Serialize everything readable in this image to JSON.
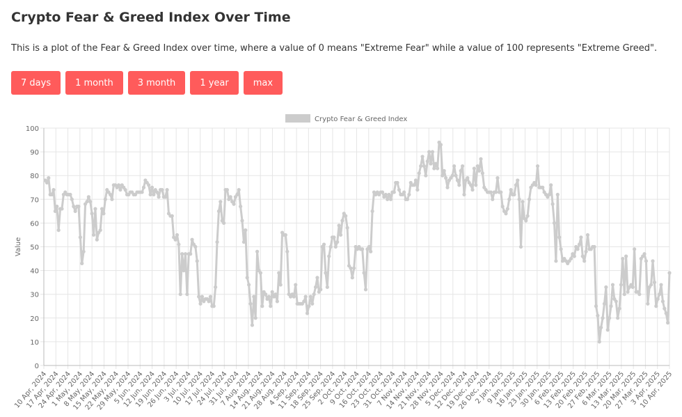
{
  "page": {
    "title": "Crypto Fear & Greed Index Over Time",
    "description": "This is a plot of the Fear & Greed Index over time, where a value of 0 means \"Extreme Fear\" while a value of 100 represents \"Extreme Greed\"."
  },
  "buttons": [
    {
      "label": "7 days"
    },
    {
      "label": "1 month"
    },
    {
      "label": "3 month"
    },
    {
      "label": "1 year"
    },
    {
      "label": "max"
    }
  ],
  "colors": {
    "accent": "#ff5b5b",
    "line": "#cccccc",
    "grid": "#e5e5e5",
    "axis_text": "#666666"
  },
  "chart_data": {
    "type": "line",
    "title": "",
    "xlabel": "",
    "ylabel": "Value",
    "ylim": [
      0,
      100
    ],
    "yticks": [
      0,
      10,
      20,
      30,
      40,
      50,
      60,
      70,
      80,
      90,
      100
    ],
    "grid": true,
    "legend_position": "top",
    "x_tick_labels": [
      "10 Apr, 2024",
      "17 Apr, 2024",
      "24 Apr, 2024",
      "1 May, 2024",
      "8 May, 2024",
      "15 May, 2024",
      "22 May, 2024",
      "29 May, 2024",
      "5 Jun, 2024",
      "12 Jun, 2024",
      "19 Jun, 2024",
      "26 Jun, 2024",
      "3 Jul, 2024",
      "10 Jul, 2024",
      "17 Jul, 2024",
      "24 Jul, 2024",
      "31 Jul, 2024",
      "7 Aug, 2024",
      "14 Aug, 2024",
      "21 Aug, 2024",
      "28 Aug, 2024",
      "4 Sep, 2024",
      "11 Sep, 2024",
      "18 Sep, 2024",
      "25 Sep, 2024",
      "2 Oct, 2024",
      "9 Oct, 2024",
      "16 Oct, 2024",
      "23 Oct, 2024",
      "31 Oct, 2024",
      "7 Nov, 2024",
      "14 Nov, 2024",
      "21 Nov, 2024",
      "28 Nov, 2024",
      "5 Dec, 2024",
      "12 Dec, 2024",
      "19 Dec, 2024",
      "26 Dec, 2024",
      "2 Jan, 2025",
      "9 Jan, 2025",
      "16 Jan, 2025",
      "23 Jan, 2025",
      "30 Jan, 2025",
      "6 Feb, 2025",
      "13 Feb, 2025",
      "20 Feb, 2025",
      "27 Feb, 2025",
      "6 Mar, 2025",
      "13 Mar, 2025",
      "20 Mar, 2025",
      "27 Mar, 2025",
      "3 Apr, 2025",
      "10 Apr, 2025"
    ],
    "series": [
      {
        "name": "Crypto Fear & Greed Index",
        "values": [
          78,
          77,
          79,
          72,
          72,
          74,
          65,
          67,
          57,
          66,
          66,
          72,
          73,
          72,
          72,
          72,
          70,
          67,
          65,
          67,
          67,
          54,
          43,
          48,
          68,
          69,
          71,
          69,
          64,
          55,
          66,
          53,
          56,
          57,
          66,
          64,
          70,
          74,
          73,
          72,
          70,
          76,
          76,
          75,
          76,
          74,
          76,
          75,
          74,
          72,
          72,
          73,
          73,
          72,
          72,
          73,
          73,
          73,
          73,
          75,
          78,
          77,
          76,
          72,
          75,
          72,
          74,
          73,
          71,
          74,
          74,
          71,
          71,
          74,
          64,
          63,
          63,
          54,
          53,
          55,
          51,
          30,
          47,
          40,
          47,
          30,
          47,
          47,
          53,
          51,
          50,
          44,
          29,
          26,
          29,
          27,
          28,
          28,
          27,
          29,
          25,
          25,
          33,
          52,
          65,
          69,
          61,
          60,
          74,
          74,
          70,
          71,
          69,
          68,
          71,
          72,
          74,
          67,
          61,
          52,
          57,
          37,
          34,
          26,
          17,
          29,
          20,
          48,
          40,
          39,
          25,
          31,
          30,
          28,
          29,
          25,
          31,
          29,
          30,
          27,
          39,
          34,
          56,
          55,
          55,
          48,
          30,
          29,
          30,
          29,
          34,
          26,
          26,
          26,
          26,
          27,
          29,
          22,
          25,
          29,
          26,
          30,
          33,
          37,
          31,
          32,
          50,
          51,
          39,
          33,
          46,
          50,
          54,
          54,
          50,
          52,
          59,
          55,
          61,
          64,
          63,
          58,
          42,
          41,
          37,
          41,
          50,
          49,
          50,
          49,
          49,
          39,
          32,
          49,
          50,
          48,
          65,
          73,
          72,
          73,
          72,
          73,
          73,
          71,
          72,
          70,
          72,
          70,
          73,
          73,
          77,
          77,
          74,
          72,
          72,
          73,
          70,
          70,
          72,
          77,
          76,
          76,
          78,
          74,
          81,
          84,
          88,
          84,
          80,
          86,
          90,
          85,
          90,
          83,
          85,
          83,
          94,
          93,
          80,
          82,
          79,
          75,
          78,
          79,
          80,
          84,
          80,
          78,
          76,
          82,
          84,
          72,
          78,
          79,
          77,
          76,
          74,
          83,
          76,
          84,
          82,
          87,
          81,
          75,
          74,
          73,
          73,
          73,
          70,
          73,
          73,
          79,
          73,
          73,
          67,
          65,
          64,
          66,
          70,
          74,
          72,
          72,
          76,
          78,
          70,
          50,
          69,
          62,
          61,
          63,
          70,
          75,
          76,
          77,
          76,
          84,
          75,
          75,
          75,
          73,
          72,
          71,
          72,
          76,
          68,
          60,
          44,
          72,
          54,
          49,
          44,
          45,
          44,
          43,
          44,
          45,
          47,
          46,
          50,
          49,
          51,
          54,
          46,
          44,
          48,
          55,
          49,
          49,
          50,
          50,
          25,
          21,
          10,
          16,
          20,
          26,
          33,
          15,
          20,
          25,
          34,
          28,
          27,
          20,
          24,
          34,
          45,
          30,
          46,
          31,
          33,
          34,
          33,
          49,
          31,
          31,
          30,
          45,
          46,
          47,
          44,
          26,
          33,
          34,
          44,
          35,
          25,
          28,
          30,
          34,
          27,
          24,
          22,
          18,
          39
        ]
      }
    ]
  }
}
